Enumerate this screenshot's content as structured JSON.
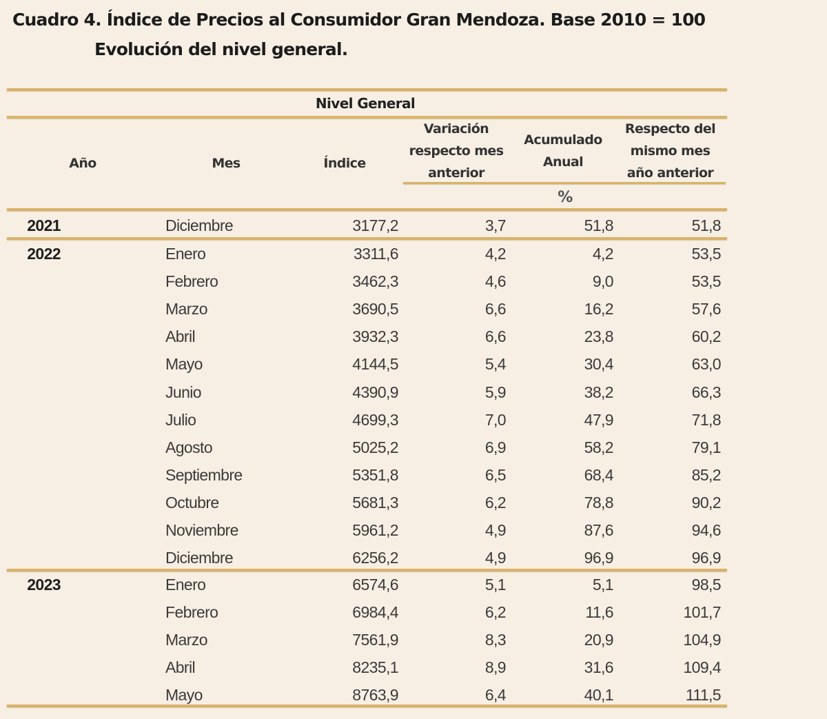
{
  "title": "Cuadro 4. Índice de Precios al Consumidor Gran Mendoza. Base 2010 = 100",
  "subtitle": "Evolución del nivel general.",
  "colors": {
    "background": "#f8efe4",
    "rule": "#d9b26a",
    "text": "#3a3a3a"
  },
  "table": {
    "group_header": "Nivel General",
    "headers": {
      "anio": "Año",
      "mes": "Mes",
      "indice": "Índice",
      "variacion": [
        "Variación",
        "respecto mes",
        "anterior"
      ],
      "acumulado": [
        "Acumulado",
        "Anual"
      ],
      "respecto": [
        "Respecto del",
        "mismo mes",
        "año anterior"
      ],
      "unit": "%"
    },
    "rows": [
      {
        "anio": "2021",
        "mes": "Diciembre",
        "indice": "3177,2",
        "variacion": "3,7",
        "acumulado": "51,8",
        "respecto": "51,8"
      },
      {
        "anio": "2022",
        "mes": "Enero",
        "indice": "3311,6",
        "variacion": "4,2",
        "acumulado": "4,2",
        "respecto": "53,5"
      },
      {
        "anio": "",
        "mes": "Febrero",
        "indice": "3462,3",
        "variacion": "4,6",
        "acumulado": "9,0",
        "respecto": "53,5"
      },
      {
        "anio": "",
        "mes": "Marzo",
        "indice": "3690,5",
        "variacion": "6,6",
        "acumulado": "16,2",
        "respecto": "57,6"
      },
      {
        "anio": "",
        "mes": "Abril",
        "indice": "3932,3",
        "variacion": "6,6",
        "acumulado": "23,8",
        "respecto": "60,2"
      },
      {
        "anio": "",
        "mes": "Mayo",
        "indice": "4144,5",
        "variacion": "5,4",
        "acumulado": "30,4",
        "respecto": "63,0"
      },
      {
        "anio": "",
        "mes": "Junio",
        "indice": "4390,9",
        "variacion": "5,9",
        "acumulado": "38,2",
        "respecto": "66,3"
      },
      {
        "anio": "",
        "mes": "Julio",
        "indice": "4699,3",
        "variacion": "7,0",
        "acumulado": "47,9",
        "respecto": "71,8"
      },
      {
        "anio": "",
        "mes": "Agosto",
        "indice": "5025,2",
        "variacion": "6,9",
        "acumulado": "58,2",
        "respecto": "79,1"
      },
      {
        "anio": "",
        "mes": "Septiembre",
        "indice": "5351,8",
        "variacion": "6,5",
        "acumulado": "68,4",
        "respecto": "85,2"
      },
      {
        "anio": "",
        "mes": "Octubre",
        "indice": "5681,3",
        "variacion": "6,2",
        "acumulado": "78,8",
        "respecto": "90,2"
      },
      {
        "anio": "",
        "mes": "Noviembre",
        "indice": "5961,2",
        "variacion": "4,9",
        "acumulado": "87,6",
        "respecto": "94,6"
      },
      {
        "anio": "",
        "mes": "Diciembre",
        "indice": "6256,2",
        "variacion": "4,9",
        "acumulado": "96,9",
        "respecto": "96,9"
      },
      {
        "anio": "2023",
        "mes": "Enero",
        "indice": "6574,6",
        "variacion": "5,1",
        "acumulado": "5,1",
        "respecto": "98,5"
      },
      {
        "anio": "",
        "mes": "Febrero",
        "indice": "6984,4",
        "variacion": "6,2",
        "acumulado": "11,6",
        "respecto": "101,7"
      },
      {
        "anio": "",
        "mes": "Marzo",
        "indice": "7561,9",
        "variacion": "8,3",
        "acumulado": "20,9",
        "respecto": "104,9"
      },
      {
        "anio": "",
        "mes": "Abril",
        "indice": "8235,1",
        "variacion": "8,9",
        "acumulado": "31,6",
        "respecto": "109,4"
      },
      {
        "anio": "",
        "mes": "Mayo",
        "indice": "8763,9",
        "variacion": "6,4",
        "acumulado": "40,1",
        "respecto": "111,5"
      }
    ]
  }
}
